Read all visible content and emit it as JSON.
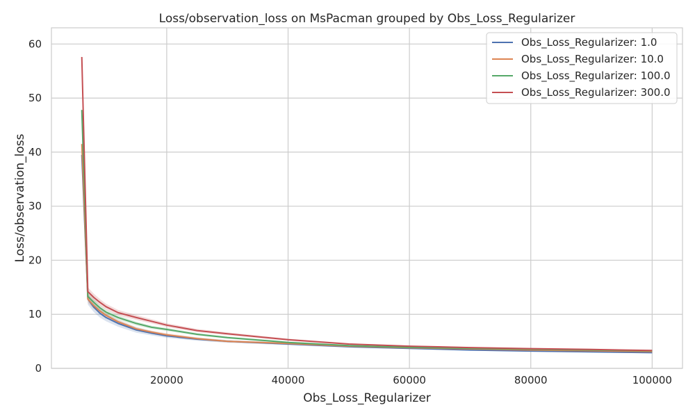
{
  "chart_data": {
    "type": "line",
    "title": "Loss/observation_loss on MsPacman grouped by Obs_Loss_Regularizer",
    "xlabel": "Obs_Loss_Regularizer",
    "ylabel": "Loss/observation_loss",
    "xlim": [
      1000,
      105000
    ],
    "ylim": [
      0,
      63
    ],
    "xticks": [
      20000,
      40000,
      60000,
      80000,
      100000
    ],
    "yticks": [
      0,
      10,
      20,
      30,
      40,
      50,
      60
    ],
    "grid": true,
    "legend_position": "top-right",
    "series": [
      {
        "name": "Obs_Loss_Regularizer: 1.0",
        "color": "#4c72b0",
        "x": [
          6000,
          7000,
          8000,
          9000,
          10000,
          12000,
          15000,
          17500,
          20000,
          25000,
          30000,
          40000,
          50000,
          60000,
          70000,
          80000,
          90000,
          100000
        ],
        "y": [
          39.5,
          12.8,
          11.3,
          10.2,
          9.4,
          8.3,
          7.1,
          6.5,
          6.0,
          5.4,
          5.0,
          4.5,
          4.0,
          3.7,
          3.4,
          3.2,
          3.05,
          2.9
        ],
        "band": [
          1.0,
          1.0,
          0.9,
          0.8,
          0.7,
          0.6,
          0.5,
          0.4,
          0.35,
          0.3,
          0.25,
          0.2,
          0.15,
          0.12,
          0.1,
          0.1,
          0.1,
          0.1
        ]
      },
      {
        "name": "Obs_Loss_Regularizer: 10.0",
        "color": "#dd8452",
        "x": [
          6000,
          7000,
          8000,
          9000,
          10000,
          12000,
          15000,
          17500,
          20000,
          25000,
          30000,
          40000,
          50000,
          60000,
          70000,
          80000,
          90000,
          100000
        ],
        "y": [
          41.5,
          12.8,
          11.6,
          10.6,
          9.8,
          8.6,
          7.3,
          6.7,
          6.2,
          5.5,
          5.0,
          4.6,
          4.1,
          3.8,
          3.6,
          3.4,
          3.25,
          3.1
        ],
        "band": [
          0.8,
          0.7,
          0.6,
          0.5,
          0.45,
          0.4,
          0.35,
          0.3,
          0.3,
          0.25,
          0.2,
          0.2,
          0.15,
          0.12,
          0.1,
          0.1,
          0.1,
          0.1
        ]
      },
      {
        "name": "Obs_Loss_Regularizer: 100.0",
        "color": "#55a868",
        "x": [
          6000,
          7000,
          8000,
          9000,
          10000,
          12000,
          15000,
          17500,
          20000,
          25000,
          30000,
          40000,
          50000,
          60000,
          70000,
          80000,
          90000,
          100000
        ],
        "y": [
          47.8,
          13.3,
          12.2,
          11.2,
          10.4,
          9.4,
          8.3,
          7.6,
          7.2,
          6.3,
          5.7,
          4.8,
          4.2,
          3.9,
          3.7,
          3.55,
          3.4,
          3.25
        ],
        "band": [
          0.8,
          0.7,
          0.6,
          0.5,
          0.45,
          0.4,
          0.35,
          0.3,
          0.3,
          0.25,
          0.2,
          0.2,
          0.15,
          0.12,
          0.1,
          0.1,
          0.1,
          0.1
        ]
      },
      {
        "name": "Obs_Loss_Regularizer: 300.0",
        "color": "#c44e52",
        "x": [
          6000,
          7000,
          8000,
          9000,
          10000,
          12000,
          15000,
          17500,
          20000,
          25000,
          30000,
          40000,
          50000,
          60000,
          70000,
          80000,
          90000,
          100000
        ],
        "y": [
          57.6,
          14.2,
          13.1,
          12.2,
          11.4,
          10.3,
          9.4,
          8.7,
          8.0,
          7.0,
          6.4,
          5.3,
          4.5,
          4.1,
          3.85,
          3.65,
          3.5,
          3.3
        ],
        "band": [
          1.0,
          0.8,
          0.7,
          0.6,
          0.55,
          0.5,
          0.45,
          0.4,
          0.35,
          0.3,
          0.25,
          0.2,
          0.15,
          0.12,
          0.1,
          0.1,
          0.1,
          0.1
        ]
      }
    ]
  }
}
